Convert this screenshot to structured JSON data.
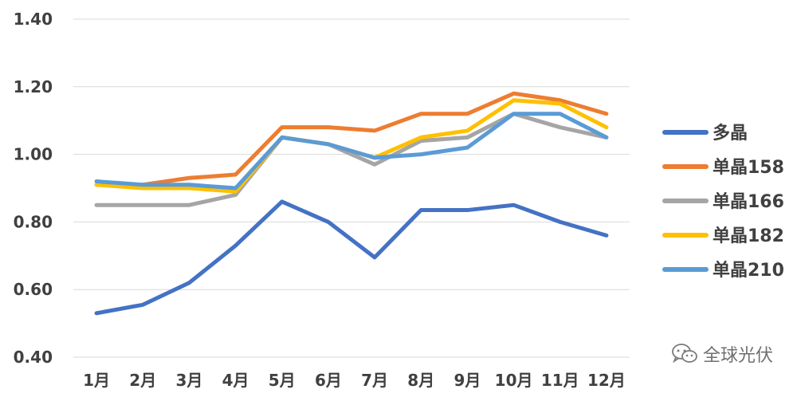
{
  "chart_data": {
    "type": "line",
    "categories": [
      "1月",
      "2月",
      "3月",
      "4月",
      "5月",
      "6月",
      "7月",
      "8月",
      "9月",
      "10月",
      "11月",
      "12月"
    ],
    "y_ticks": [
      "0.40",
      "0.60",
      "0.80",
      "1.00",
      "1.20",
      "1.40"
    ],
    "ylim": [
      0.4,
      1.4
    ],
    "grid": true,
    "legend_position": "right",
    "series": [
      {
        "name": "多晶",
        "color": "#4472C4",
        "values": [
          0.53,
          0.555,
          0.62,
          0.73,
          0.86,
          0.8,
          0.695,
          0.835,
          0.835,
          0.85,
          0.8,
          0.76
        ]
      },
      {
        "name": "单晶158",
        "color": "#ED7D31",
        "values": [
          0.91,
          0.91,
          0.93,
          0.94,
          1.08,
          1.08,
          1.07,
          1.12,
          1.12,
          1.18,
          1.16,
          1.12
        ]
      },
      {
        "name": "单晶166",
        "color": "#A5A5A5",
        "values": [
          0.85,
          0.85,
          0.85,
          0.88,
          1.05,
          1.03,
          0.97,
          1.04,
          1.05,
          1.12,
          1.08,
          1.05
        ]
      },
      {
        "name": "单晶182",
        "color": "#FFC000",
        "values": [
          0.91,
          0.9,
          0.9,
          0.89,
          1.05,
          1.03,
          0.99,
          1.05,
          1.07,
          1.16,
          1.15,
          1.08
        ]
      },
      {
        "name": "单晶210",
        "color": "#5B9BD5",
        "values": [
          0.92,
          0.91,
          0.91,
          0.9,
          1.05,
          1.03,
          0.99,
          1.0,
          1.02,
          1.12,
          1.12,
          1.05
        ]
      }
    ]
  },
  "watermark": {
    "text": "全球光伏",
    "icon": "wechat-icon"
  }
}
